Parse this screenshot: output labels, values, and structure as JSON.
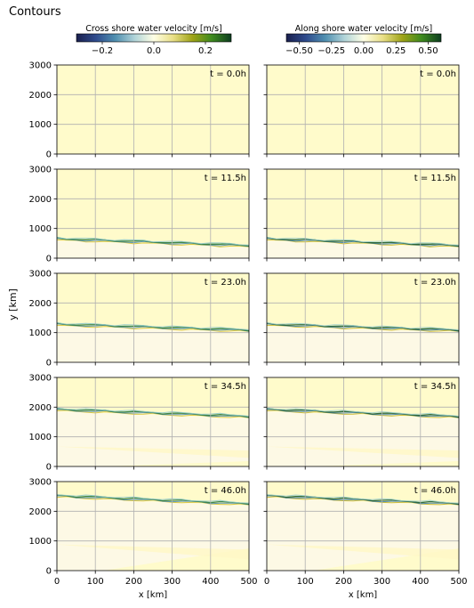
{
  "figure_title": "Contours",
  "chart_data": {
    "type": "heatmap",
    "suptitle": "Contours",
    "x_label": "x [km]",
    "y_label": "y [km]",
    "x_ticks": [
      "0",
      "100",
      "200",
      "300",
      "400",
      "500"
    ],
    "y_ticks": [
      "0",
      "1000",
      "2000",
      "3000"
    ],
    "xlim": [
      0,
      500
    ],
    "ylim": [
      0,
      3000
    ],
    "grid": true,
    "colormap_colors": [
      "#1a1f4d",
      "#2e4a8c",
      "#4f8fb0",
      "#b0d3d8",
      "#ffffe5",
      "#e9df86",
      "#9ea317",
      "#3d8a1e",
      "#0d3d20"
    ],
    "colorbars": [
      {
        "label": "Cross shore water velocity [m/s]",
        "range": [
          -0.3,
          0.3
        ],
        "ticks": [
          "−0.2",
          "0.0",
          "0.2"
        ],
        "tick_values": [
          -0.2,
          0.0,
          0.2
        ]
      },
      {
        "label": "Along shore water velocity [m/s]",
        "range": [
          -0.6,
          0.6
        ],
        "ticks": [
          "−0.50",
          "−0.25",
          "0.00",
          "0.25",
          "0.50"
        ],
        "tick_values": [
          -0.5,
          -0.25,
          0.0,
          0.25,
          0.5
        ]
      }
    ],
    "panel_labels": [
      "t = 0.0h",
      "t = 11.5h",
      "t = 23.0h",
      "t = 34.5h",
      "t = 46.0h"
    ],
    "times_h": [
      0.0,
      11.5,
      23.0,
      34.5,
      46.0
    ],
    "front_y_km_at_x0": [
      0,
      650,
      1280,
      1920,
      2520
    ],
    "front_y_km_at_x500": [
      0,
      420,
      1080,
      1680,
      2250
    ],
    "field_background_color": "#fffbcb",
    "wake_color": "#fdf9e6"
  }
}
